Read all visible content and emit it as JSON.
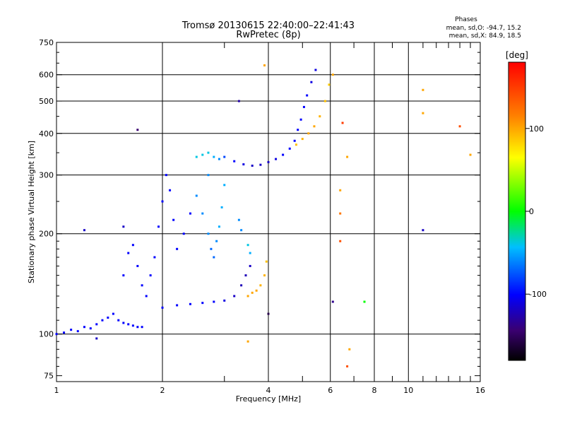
{
  "chart_data": {
    "type": "scatter",
    "title": "Tromsø 20130615 22:40:00–22:41:43",
    "subtitle": "RwPretec (8p)",
    "xlabel": "Frequency [MHz]",
    "ylabel": "Stationary phase Virtual Height [km]",
    "x_scale": "log",
    "y_scale": "log",
    "xlim": [
      1,
      16
    ],
    "ylim": [
      72,
      750
    ],
    "x_ticks": [
      1,
      2,
      4,
      6,
      8,
      10,
      16
    ],
    "x_tick_labels": [
      "1",
      "2",
      "4",
      "6",
      "8",
      "10",
      "16"
    ],
    "y_ticks": [
      75,
      100,
      200,
      300,
      400,
      500,
      600,
      750
    ],
    "y_tick_labels": [
      "75",
      "100",
      "200",
      "300",
      "400",
      "500",
      "600",
      "750"
    ],
    "grid": true,
    "stats": {
      "title": "Phases",
      "line_o": "mean, sd,O: -94.7, 15.2",
      "line_x": "mean, sd,X:  84.9, 18.5"
    },
    "colorbar": {
      "label": "[deg]",
      "ticks": [
        100,
        0,
        -100
      ],
      "tick_labels": [
        "100",
        "0",
        "-100"
      ],
      "range": [
        -180,
        180
      ]
    },
    "series": [
      {
        "points": [
          {
            "x": 1.0,
            "y": 100,
            "phase": -100
          },
          {
            "x": 1.05,
            "y": 101,
            "phase": -100
          },
          {
            "x": 1.1,
            "y": 103,
            "phase": -100
          },
          {
            "x": 1.15,
            "y": 102,
            "phase": -100
          },
          {
            "x": 1.2,
            "y": 105,
            "phase": -100
          },
          {
            "x": 1.25,
            "y": 104,
            "phase": -100
          },
          {
            "x": 1.3,
            "y": 107,
            "phase": -100
          },
          {
            "x": 1.35,
            "y": 110,
            "phase": -100
          },
          {
            "x": 1.4,
            "y": 112,
            "phase": -100
          },
          {
            "x": 1.45,
            "y": 115,
            "phase": -100
          },
          {
            "x": 1.5,
            "y": 110,
            "phase": -100
          },
          {
            "x": 1.55,
            "y": 108,
            "phase": -100
          },
          {
            "x": 1.6,
            "y": 107,
            "phase": -100
          },
          {
            "x": 1.65,
            "y": 106,
            "phase": -100
          },
          {
            "x": 1.7,
            "y": 105,
            "phase": -100
          },
          {
            "x": 1.75,
            "y": 105,
            "phase": -100
          },
          {
            "x": 1.55,
            "y": 150,
            "phase": -100
          },
          {
            "x": 1.6,
            "y": 175,
            "phase": -100
          },
          {
            "x": 1.65,
            "y": 185,
            "phase": -100
          },
          {
            "x": 1.7,
            "y": 160,
            "phase": -100
          },
          {
            "x": 1.75,
            "y": 140,
            "phase": -100
          },
          {
            "x": 1.8,
            "y": 130,
            "phase": -100
          },
          {
            "x": 1.85,
            "y": 150,
            "phase": -100
          },
          {
            "x": 1.9,
            "y": 170,
            "phase": -100
          },
          {
            "x": 1.95,
            "y": 210,
            "phase": -100
          },
          {
            "x": 2.0,
            "y": 250,
            "phase": -100
          },
          {
            "x": 2.05,
            "y": 300,
            "phase": -100
          },
          {
            "x": 2.1,
            "y": 270,
            "phase": -100
          },
          {
            "x": 2.15,
            "y": 220,
            "phase": -100
          },
          {
            "x": 2.2,
            "y": 180,
            "phase": -100
          },
          {
            "x": 2.3,
            "y": 200,
            "phase": -100
          },
          {
            "x": 2.4,
            "y": 230,
            "phase": -100
          },
          {
            "x": 2.0,
            "y": 120,
            "phase": -100
          },
          {
            "x": 2.2,
            "y": 122,
            "phase": -100
          },
          {
            "x": 2.4,
            "y": 123,
            "phase": -100
          },
          {
            "x": 2.6,
            "y": 124,
            "phase": -100
          },
          {
            "x": 2.8,
            "y": 125,
            "phase": -100
          },
          {
            "x": 3.0,
            "y": 126,
            "phase": -110
          },
          {
            "x": 3.2,
            "y": 130,
            "phase": -120
          },
          {
            "x": 3.35,
            "y": 140,
            "phase": -125
          },
          {
            "x": 3.45,
            "y": 150,
            "phase": -125
          },
          {
            "x": 3.55,
            "y": 160,
            "phase": -120
          },
          {
            "x": 2.5,
            "y": 260,
            "phase": -60
          },
          {
            "x": 2.6,
            "y": 230,
            "phase": -60
          },
          {
            "x": 2.7,
            "y": 200,
            "phase": -60
          },
          {
            "x": 2.75,
            "y": 180,
            "phase": -70
          },
          {
            "x": 2.8,
            "y": 170,
            "phase": -70
          },
          {
            "x": 2.85,
            "y": 190,
            "phase": -60
          },
          {
            "x": 2.9,
            "y": 210,
            "phase": -50
          },
          {
            "x": 2.95,
            "y": 240,
            "phase": -50
          },
          {
            "x": 3.0,
            "y": 280,
            "phase": -50
          },
          {
            "x": 2.7,
            "y": 300,
            "phase": -60
          },
          {
            "x": 2.5,
            "y": 340,
            "phase": -40
          },
          {
            "x": 2.6,
            "y": 345,
            "phase": -40
          },
          {
            "x": 2.7,
            "y": 350,
            "phase": -40
          },
          {
            "x": 2.8,
            "y": 340,
            "phase": -50
          },
          {
            "x": 2.9,
            "y": 335,
            "phase": -60
          },
          {
            "x": 3.0,
            "y": 340,
            "phase": -80
          },
          {
            "x": 3.2,
            "y": 330,
            "phase": -100
          },
          {
            "x": 3.4,
            "y": 323,
            "phase": -110
          },
          {
            "x": 3.6,
            "y": 320,
            "phase": -120
          },
          {
            "x": 3.8,
            "y": 322,
            "phase": -120
          },
          {
            "x": 4.0,
            "y": 328,
            "phase": -120
          },
          {
            "x": 4.2,
            "y": 335,
            "phase": -110
          },
          {
            "x": 4.4,
            "y": 345,
            "phase": -100
          },
          {
            "x": 4.6,
            "y": 360,
            "phase": -100
          },
          {
            "x": 4.75,
            "y": 380,
            "phase": -100
          },
          {
            "x": 4.85,
            "y": 410,
            "phase": -100
          },
          {
            "x": 4.95,
            "y": 440,
            "phase": -100
          },
          {
            "x": 5.05,
            "y": 480,
            "phase": -100
          },
          {
            "x": 5.15,
            "y": 520,
            "phase": -100
          },
          {
            "x": 5.3,
            "y": 570,
            "phase": -110
          },
          {
            "x": 5.45,
            "y": 620,
            "phase": -110
          },
          {
            "x": 4.8,
            "y": 370,
            "phase": 90
          },
          {
            "x": 5.0,
            "y": 385,
            "phase": 95
          },
          {
            "x": 5.2,
            "y": 400,
            "phase": 100
          },
          {
            "x": 5.4,
            "y": 420,
            "phase": 100
          },
          {
            "x": 5.6,
            "y": 450,
            "phase": 95
          },
          {
            "x": 5.8,
            "y": 500,
            "phase": 90
          },
          {
            "x": 5.95,
            "y": 560,
            "phase": 85
          },
          {
            "x": 6.1,
            "y": 600,
            "phase": 100
          },
          {
            "x": 3.5,
            "y": 130,
            "phase": 100
          },
          {
            "x": 3.6,
            "y": 133,
            "phase": 100
          },
          {
            "x": 3.7,
            "y": 135,
            "phase": 100
          },
          {
            "x": 3.8,
            "y": 140,
            "phase": 95
          },
          {
            "x": 3.9,
            "y": 150,
            "phase": 95
          },
          {
            "x": 3.95,
            "y": 165,
            "phase": 90
          },
          {
            "x": 3.3,
            "y": 220,
            "phase": -60
          },
          {
            "x": 3.35,
            "y": 205,
            "phase": -60
          },
          {
            "x": 3.5,
            "y": 185,
            "phase": -40
          },
          {
            "x": 3.55,
            "y": 175,
            "phase": -50
          },
          {
            "x": 11,
            "y": 540,
            "phase": 100
          },
          {
            "x": 11,
            "y": 460,
            "phase": 100
          },
          {
            "x": 11,
            "y": 205,
            "phase": -120
          },
          {
            "x": 14,
            "y": 420,
            "phase": 140
          },
          {
            "x": 6.5,
            "y": 430,
            "phase": 150
          },
          {
            "x": 6.7,
            "y": 340,
            "phase": 100
          },
          {
            "x": 6.8,
            "y": 90,
            "phase": 100
          },
          {
            "x": 6.7,
            "y": 80,
            "phase": 140
          },
          {
            "x": 7.5,
            "y": 125,
            "phase": 0
          },
          {
            "x": 6.1,
            "y": 125,
            "phase": -140
          },
          {
            "x": 4.0,
            "y": 115,
            "phase": -160
          },
          {
            "x": 3.5,
            "y": 95,
            "phase": 100
          },
          {
            "x": 3.9,
            "y": 640,
            "phase": 100
          },
          {
            "x": 1.7,
            "y": 410,
            "phase": -150
          },
          {
            "x": 1.3,
            "y": 97,
            "phase": -120
          },
          {
            "x": 1.2,
            "y": 205,
            "phase": -120
          },
          {
            "x": 1.55,
            "y": 210,
            "phase": -120
          },
          {
            "x": 6.4,
            "y": 190,
            "phase": 140
          },
          {
            "x": 6.4,
            "y": 230,
            "phase": 120
          },
          {
            "x": 6.4,
            "y": 270,
            "phase": 100
          },
          {
            "x": 3.3,
            "y": 500,
            "phase": -130
          },
          {
            "x": 15,
            "y": 345,
            "phase": 100
          }
        ]
      }
    ]
  }
}
